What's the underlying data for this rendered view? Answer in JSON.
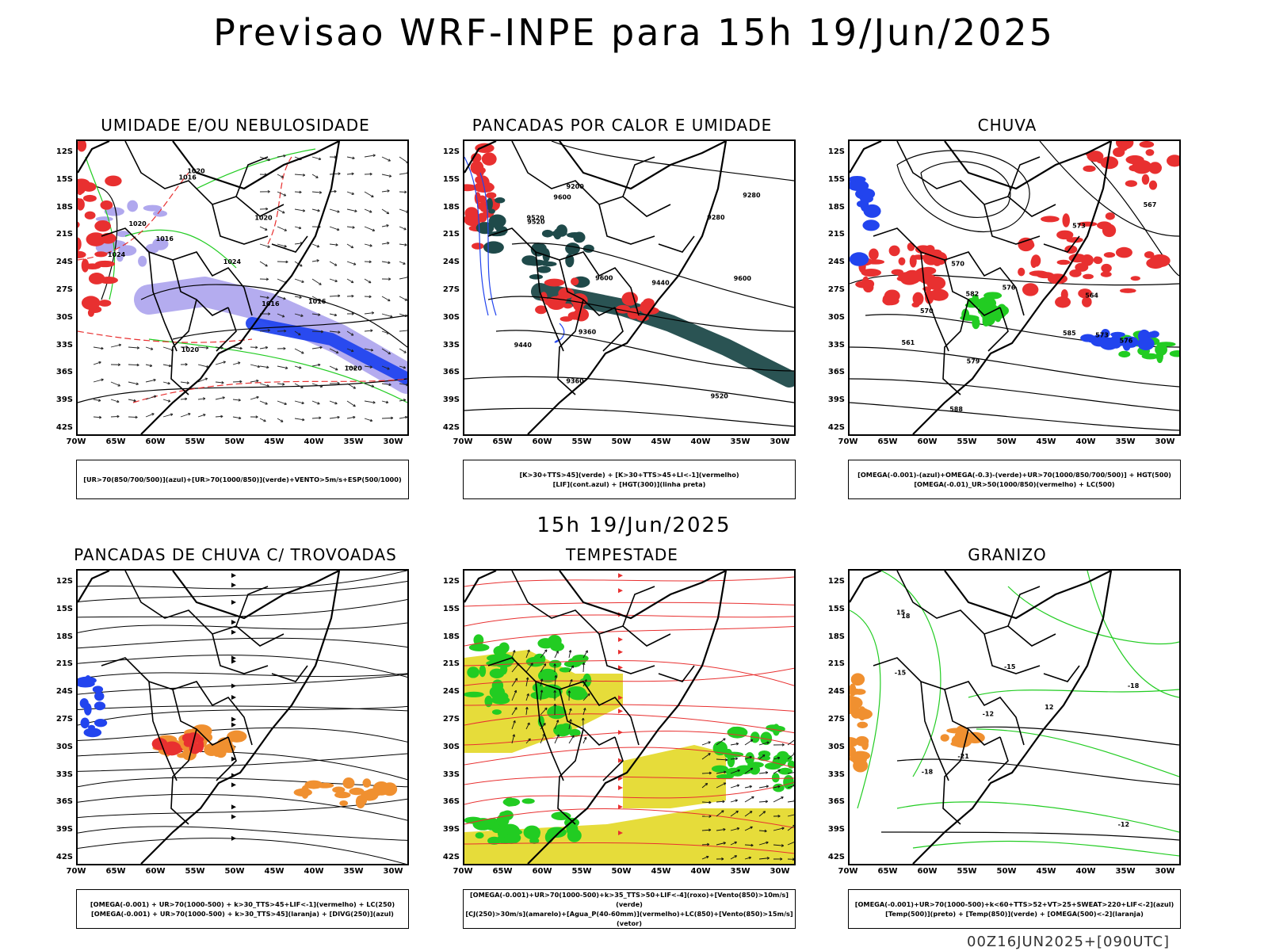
{
  "title": "Previsao WRF-INPE  para 15h 19/Jun/2025",
  "subtitle_time": "15h 19/Jun/2025",
  "footer": "00Z16JUN2025+[090UTC]",
  "lat_labels": [
    "12S",
    "15S",
    "18S",
    "21S",
    "24S",
    "27S",
    "30S",
    "33S",
    "36S",
    "39S",
    "42S"
  ],
  "lon_labels": [
    "70W",
    "65W",
    "60W",
    "55W",
    "50W",
    "45W",
    "40W",
    "35W",
    "30W"
  ],
  "colors": {
    "red": "#e83030",
    "green": "#22cc22",
    "blue": "#2244ee",
    "lavender": "#b0a8ee",
    "teal": "#1f4a4a",
    "orange": "#f09030",
    "yellow": "#e6dc3a"
  },
  "panels": [
    {
      "title": "UMIDADE E/OU NEBULOSIDADE",
      "legend": [
        "[UR>70(850/700/500)](azul)+[UR>70(1000/850)](verde)+VENTO>5m/s+ESP(500/1000)"
      ],
      "contour_labels": [
        "1016",
        "1020",
        "1024",
        "1016",
        "1020",
        "1020",
        "1024",
        "1016",
        "1020",
        "1016",
        "1020"
      ]
    },
    {
      "title": "PANCADAS POR CALOR E UMIDADE",
      "legend": [
        "[K>30+TTS>45](verde) + [K>30+TTS>45+LI<-1](vermelho)",
        "[LIF](cont.azul) + [HGT(300)](linha preta)"
      ],
      "contour_labels": [
        "9600",
        "9600",
        "9600",
        "9520",
        "9440",
        "9520",
        "9440",
        "9360",
        "9360",
        "9280",
        "9280",
        "9200",
        "9520"
      ]
    },
    {
      "title": "CHUVA",
      "legend": [
        "[OMEGA(-0.001)-(azul)+OMEGA(-0.3)-(verde)+UR>70(1000/850/700/500)] + HGT(500)",
        "[OMEGA(-0.01)_UR>50(1000/850)(vermelho) + LC(500)"
      ],
      "contour_labels": [
        "588",
        "585",
        "582",
        "579",
        "576",
        "573",
        "570",
        "567",
        "564",
        "561",
        "570",
        "573",
        "576"
      ]
    },
    {
      "title": "PANCADAS DE CHUVA C/ TROVOADAS",
      "legend": [
        "[OMEGA(-0.001) + UR>70(1000-500) + k>30_TTS>45+LIF<-1](vermelho) + LC(250)",
        "[OMEGA(-0.001) + UR>70(1000-500) + k>30_TTS>45](laranja) + [DIVG(250)](azul)"
      ],
      "contour_labels": []
    },
    {
      "title": "TEMPESTADE",
      "legend": [
        "[OMEGA(-0.001)+UR>70(1000-500)+k>35_TTS>50+LIF<-4](roxo)+[Vento(850)>10m/s](verde)",
        "[CJ(250)>30m/s](amarelo)+[Agua_P(40-60mm)](vermelho)+LC(850)+[Vento(850)>15m/s](vetor)"
      ],
      "contour_labels": []
    },
    {
      "title": "GRANIZO",
      "legend": [
        "[OMEGA(-0.001)+UR>70(1000-500)+k<60+TTS>52+VT>25+SWEAT>220+LIF<-2](azul)",
        "[Temp(500)](preto) + [Temp(850)](verde) + [OMEGA(500)<-2](laranja)"
      ],
      "contour_labels": [
        "-12",
        "-15",
        "-18",
        "-18",
        "-21",
        "-15",
        "-12",
        "15",
        "18",
        "12"
      ]
    }
  ]
}
